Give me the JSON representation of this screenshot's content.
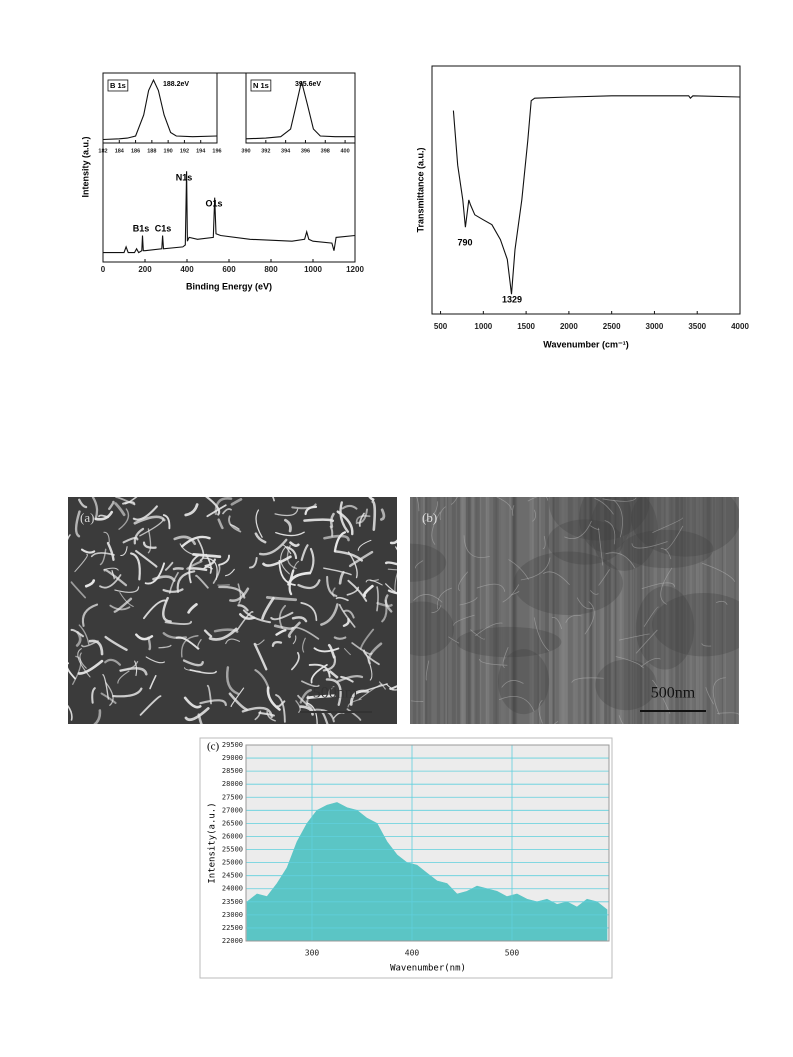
{
  "chart_data": [
    {
      "type": "line",
      "xlabel": "Binding Energy (eV)",
      "ylabel": "Intensity (a.u.)",
      "color": "#111111",
      "xlim": [
        0,
        1200
      ],
      "xticks": [
        0,
        200,
        400,
        600,
        800,
        1000,
        1200
      ],
      "ylim": [
        0,
        100
      ],
      "x": [
        0,
        100,
        110,
        120,
        150,
        160,
        170,
        185,
        188,
        192,
        200,
        280,
        284,
        288,
        380,
        392,
        398,
        402,
        410,
        450,
        525,
        532,
        538,
        560,
        700,
        900,
        960,
        970,
        980,
        1000,
        1090,
        1100,
        1110,
        1200
      ],
      "values": [
        5,
        5,
        8,
        5,
        5,
        7,
        5,
        6,
        14,
        6,
        6,
        7,
        14,
        7,
        8,
        9,
        48,
        11,
        13,
        12,
        13,
        34,
        15,
        14,
        12,
        11,
        12,
        16,
        12,
        11,
        10,
        6,
        13,
        14
      ],
      "annotations": [
        "B1s",
        "C1s",
        "N1s",
        "O1s"
      ]
    },
    {
      "type": "line",
      "title": "B 1s",
      "color": "#111111",
      "xlim": [
        182,
        196
      ],
      "xticks": [
        182,
        184,
        186,
        188,
        190,
        192,
        194,
        196
      ],
      "ylim": [
        0,
        100
      ],
      "x": [
        182,
        184,
        185,
        186,
        187,
        187.6,
        188.2,
        188.8,
        189.5,
        190.3,
        191,
        193,
        196
      ],
      "values": [
        5,
        6,
        7,
        10,
        40,
        75,
        90,
        75,
        40,
        15,
        10,
        9,
        10
      ],
      "annotations": [
        "188.2eV"
      ]
    },
    {
      "type": "line",
      "title": "N 1s",
      "color": "#111111",
      "xlim": [
        390,
        401
      ],
      "xticks": [
        390,
        392,
        394,
        396,
        398,
        400
      ],
      "ylim": [
        0,
        100
      ],
      "x": [
        390,
        392,
        393.5,
        394.5,
        395,
        395.6,
        396.2,
        396.8,
        397.5,
        399,
        401
      ],
      "values": [
        6,
        7,
        9,
        20,
        50,
        88,
        55,
        20,
        10,
        9,
        9
      ],
      "annotations": [
        "395.6eV"
      ]
    },
    {
      "type": "line",
      "xlabel": "Wavenumber (cm⁻¹)",
      "ylabel": "Transmittance (a.u.)",
      "color": "#111111",
      "xlim": [
        400,
        4000
      ],
      "xticks": [
        500,
        1000,
        1500,
        2000,
        2500,
        3000,
        3500,
        4000
      ],
      "ylim": [
        0,
        100
      ],
      "x": [
        650,
        700,
        760,
        790,
        830,
        850,
        900,
        1000,
        1100,
        1200,
        1280,
        1329,
        1370,
        1450,
        1520,
        1560,
        1600,
        2000,
        2500,
        3000,
        3400,
        3420,
        3450,
        4000
      ],
      "values": [
        82,
        60,
        46,
        35,
        46,
        44,
        40,
        38,
        36,
        30,
        22,
        8,
        26,
        46,
        70,
        86,
        87,
        87.5,
        88,
        88,
        88,
        87,
        88,
        87.5
      ],
      "annotations": [
        "790",
        "1329"
      ]
    },
    {
      "type": "area",
      "title": "(c)",
      "xlabel": "Wavenumber(nm)",
      "ylabel": "Intensity(a.u.)",
      "color": "#5bc5c5",
      "grid": true,
      "grid_color": "#5fd0dd",
      "xlim": [
        234,
        597
      ],
      "xticks": [
        300,
        400,
        500
      ],
      "ylim": [
        22000,
        29500
      ],
      "yticks": [
        22000,
        22500,
        23000,
        23500,
        24000,
        24500,
        25000,
        25500,
        26000,
        26500,
        27000,
        27500,
        28000,
        28500,
        29000,
        29500
      ],
      "x": [
        235,
        245,
        255,
        265,
        275,
        285,
        295,
        305,
        315,
        325,
        335,
        345,
        355,
        365,
        375,
        385,
        395,
        405,
        415,
        425,
        435,
        445,
        455,
        465,
        475,
        485,
        495,
        505,
        515,
        525,
        535,
        545,
        555,
        565,
        575,
        585,
        595
      ],
      "values": [
        23500,
        23800,
        23700,
        24200,
        24800,
        25800,
        26500,
        27000,
        27200,
        27300,
        27100,
        27000,
        26700,
        26500,
        25800,
        25300,
        25000,
        24900,
        24600,
        24300,
        24200,
        23800,
        23900,
        24100,
        24000,
        23900,
        23700,
        23800,
        23600,
        23500,
        23600,
        23400,
        23500,
        23300,
        23600,
        23500,
        23200
      ]
    }
  ],
  "images": [
    {
      "label": "(a)",
      "scale_bar": "500nm"
    },
    {
      "label": "(b)",
      "scale_bar": "500nm"
    }
  ]
}
